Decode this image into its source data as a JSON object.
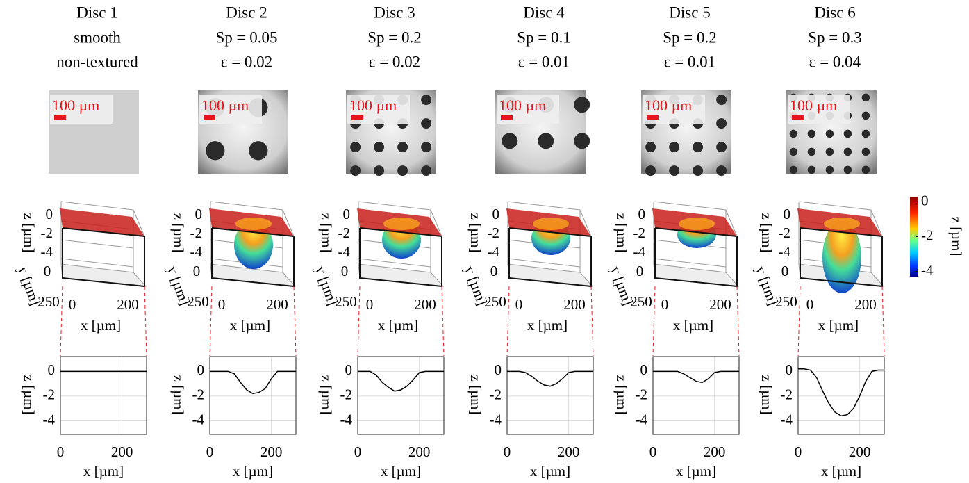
{
  "chart_data": [
    {
      "type": "line",
      "title": "Disc 1",
      "subtitle": [
        "smooth",
        "non-textured"
      ],
      "image_scale": "100 µm",
      "surface": {
        "zlabel": "z [µm]",
        "ylabel": "y [µm]",
        "xlabel": "x [µm]",
        "zticks": [
          0,
          -2,
          -4
        ],
        "yticks": [
          0,
          250
        ],
        "xticks": [
          0,
          200
        ]
      },
      "x": [
        0,
        20,
        40,
        60,
        80,
        100,
        120,
        140,
        160,
        180,
        200,
        220,
        240,
        260,
        280
      ],
      "series": [
        {
          "color": "#000000",
          "values": [
            0,
            0,
            0,
            0,
            0,
            0,
            0,
            0,
            0,
            0,
            0,
            0,
            0,
            0,
            0
          ]
        }
      ],
      "xlim": [
        0,
        280
      ],
      "ylim": [
        -5.1,
        1.2
      ],
      "xticks": [
        0,
        200
      ],
      "yticks": [
        0,
        -2,
        -4
      ],
      "xlabel": "x [µm]",
      "ylabel": "z [µm]",
      "grid": true
    },
    {
      "type": "line",
      "title": "Disc 2",
      "subtitle": [
        "Sp = 0.05",
        "ε = 0.02"
      ],
      "image_scale": "100 µm",
      "surface": {
        "zlabel": "z [µm]",
        "ylabel": "y [µm]",
        "xlabel": "x [µm]",
        "zticks": [
          0,
          -2,
          -4
        ],
        "yticks": [
          0,
          250
        ],
        "xticks": [
          0,
          200
        ]
      },
      "x": [
        0,
        20,
        40,
        60,
        80,
        100,
        120,
        140,
        160,
        180,
        200,
        220,
        240,
        260,
        280
      ],
      "series": [
        {
          "color": "#000000",
          "values": [
            0,
            0,
            0,
            0,
            -0.2,
            -0.9,
            -1.5,
            -1.8,
            -1.7,
            -1.4,
            -0.6,
            0,
            0,
            0,
            0
          ]
        }
      ],
      "xlim": [
        0,
        280
      ],
      "ylim": [
        -5.1,
        1.2
      ],
      "xticks": [
        0,
        200
      ],
      "yticks": [
        0,
        -2,
        -4
      ],
      "xlabel": "x [µm]",
      "ylabel": "z [µm]",
      "grid": true
    },
    {
      "type": "line",
      "title": "Disc 3",
      "subtitle": [
        "Sp = 0.2",
        "ε = 0.02"
      ],
      "image_scale": "100 µm",
      "surface": {
        "zlabel": "z [µm]",
        "ylabel": "y [µm]",
        "xlabel": "x [µm]",
        "zticks": [
          0,
          -2,
          -4
        ],
        "yticks": [
          0,
          250
        ],
        "xticks": [
          0,
          200
        ]
      },
      "x": [
        0,
        20,
        40,
        60,
        80,
        100,
        120,
        140,
        160,
        180,
        200,
        220,
        240,
        260,
        280
      ],
      "series": [
        {
          "color": "#000000",
          "values": [
            0,
            0,
            0,
            -0.3,
            -0.9,
            -1.3,
            -1.6,
            -1.5,
            -1.2,
            -0.7,
            -0.1,
            0,
            0,
            0,
            0
          ]
        }
      ],
      "xlim": [
        0,
        280
      ],
      "ylim": [
        -5.1,
        1.2
      ],
      "xticks": [
        0,
        200
      ],
      "yticks": [
        0,
        -2,
        -4
      ],
      "xlabel": "x [µm]",
      "ylabel": "z [µm]",
      "grid": true
    },
    {
      "type": "line",
      "title": "Disc 4",
      "subtitle": [
        "Sp = 0.1",
        "ε = 0.01"
      ],
      "image_scale": "100 µm",
      "surface": {
        "zlabel": "z [µm]",
        "ylabel": "y [µm]",
        "xlabel": "x [µm]",
        "zticks": [
          0,
          -2,
          -4
        ],
        "yticks": [
          0,
          250
        ],
        "xticks": [
          0,
          200
        ]
      },
      "x": [
        0,
        20,
        40,
        60,
        80,
        100,
        120,
        140,
        160,
        180,
        200,
        220,
        240,
        260,
        280
      ],
      "series": [
        {
          "color": "#000000",
          "values": [
            0,
            0,
            0,
            -0.1,
            -0.4,
            -0.8,
            -1.1,
            -1.2,
            -1.0,
            -0.6,
            -0.1,
            0,
            0,
            0,
            0
          ]
        }
      ],
      "xlim": [
        0,
        280
      ],
      "ylim": [
        -5.1,
        1.2
      ],
      "xticks": [
        0,
        200
      ],
      "yticks": [
        0,
        -2,
        -4
      ],
      "xlabel": "x [µm]",
      "ylabel": "z [µm]",
      "grid": true
    },
    {
      "type": "line",
      "title": "Disc 5",
      "subtitle": [
        "Sp = 0.2",
        "ε = 0.01"
      ],
      "image_scale": "100 µm",
      "surface": {
        "zlabel": "z [µm]",
        "ylabel": "y [µm]",
        "xlabel": "x [µm]",
        "zticks": [
          0,
          -2,
          -4
        ],
        "yticks": [
          0,
          250
        ],
        "xticks": [
          0,
          200
        ]
      },
      "x": [
        0,
        20,
        40,
        60,
        80,
        100,
        120,
        140,
        160,
        180,
        200,
        220,
        240,
        260,
        280
      ],
      "series": [
        {
          "color": "#000000",
          "values": [
            0,
            0,
            0,
            0,
            0,
            -0.2,
            -0.5,
            -0.8,
            -0.9,
            -0.6,
            -0.1,
            0,
            0,
            0,
            0
          ]
        }
      ],
      "xlim": [
        0,
        280
      ],
      "ylim": [
        -5.1,
        1.2
      ],
      "xticks": [
        0,
        200
      ],
      "yticks": [
        0,
        -2,
        -4
      ],
      "xlabel": "x [µm]",
      "ylabel": "z [µm]",
      "grid": true
    },
    {
      "type": "line",
      "title": "Disc 6",
      "subtitle": [
        "Sp = 0.3",
        "ε = 0.04"
      ],
      "image_scale": "100 µm",
      "surface": {
        "zlabel": "z [µm]",
        "ylabel": "y [µm]",
        "xlabel": "x [µm]",
        "zticks": [
          0,
          -2,
          -4
        ],
        "yticks": [
          0,
          250
        ],
        "xticks": [
          0,
          200
        ]
      },
      "x": [
        0,
        20,
        40,
        60,
        80,
        100,
        120,
        140,
        160,
        180,
        200,
        220,
        240,
        260,
        280
      ],
      "series": [
        {
          "color": "#000000",
          "values": [
            0.2,
            0.2,
            0.1,
            -0.5,
            -1.6,
            -2.6,
            -3.3,
            -3.6,
            -3.5,
            -3.0,
            -2.0,
            -0.8,
            0,
            0.1,
            0.1
          ]
        }
      ],
      "xlim": [
        0,
        280
      ],
      "ylim": [
        -5.1,
        1.2
      ],
      "xticks": [
        0,
        200
      ],
      "yticks": [
        0,
        -2,
        -4
      ],
      "xlabel": "x [µm]",
      "ylabel": "z [µm]",
      "grid": true
    }
  ],
  "colorbar": {
    "lim": [
      -4.3,
      0.3
    ],
    "ticks": [
      0,
      -2,
      -4
    ],
    "label": "z [µm]"
  }
}
